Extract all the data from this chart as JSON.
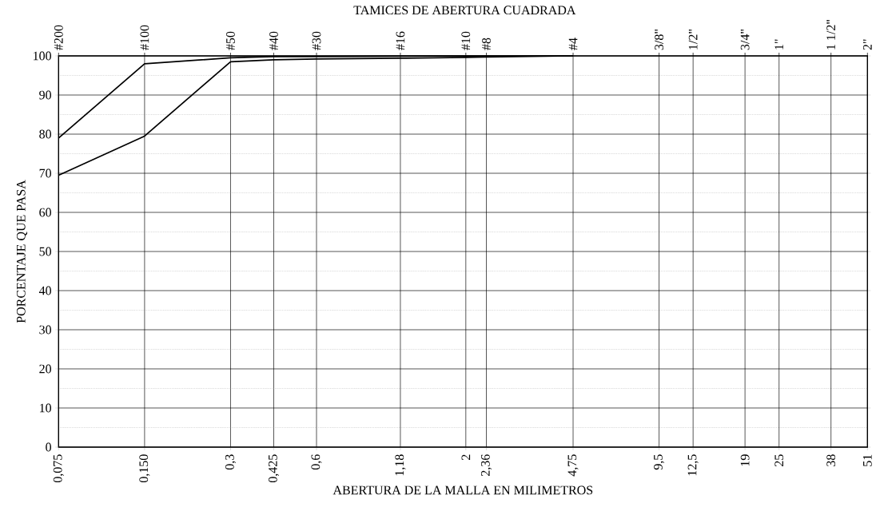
{
  "chart_data": {
    "type": "line",
    "title": "TAMICES DE ABERTURA  CUADRADA",
    "xlabel": "ABERTURA DE LA MALLA EN MILIMETROS",
    "ylabel": "PORCENTAJE QUE PASA",
    "x": [
      0.075,
      0.15,
      0.3,
      0.425,
      0.6,
      1.18,
      2,
      2.36,
      4.75
    ],
    "series": [
      {
        "color": "#000000",
        "values": [
          79,
          98,
          99.5,
          99.8,
          99.8,
          99.9,
          100,
          100,
          100
        ]
      },
      {
        "color": "#000000",
        "values": [
          69.5,
          79.5,
          98.5,
          99,
          99.2,
          99.4,
          99.6,
          99.7,
          100
        ]
      }
    ],
    "log": "x",
    "grid": true,
    "xlim": [
      0.075,
      51
    ],
    "ylim": [
      0,
      100
    ],
    "xticks": [
      {
        "value": 0.075,
        "label": "0,075"
      },
      {
        "value": 0.15,
        "label": "0,150"
      },
      {
        "value": 0.3,
        "label": "0,3"
      },
      {
        "value": 0.425,
        "label": "0,425"
      },
      {
        "value": 0.6,
        "label": "0,6"
      },
      {
        "value": 1.18,
        "label": "1,18"
      },
      2,
      {
        "value": 2.36,
        "label": "2,36"
      },
      {
        "value": 4.75,
        "label": "4,75"
      },
      {
        "value": 9.5,
        "label": "9,5"
      },
      {
        "value": 12.5,
        "label": "12,5"
      },
      19,
      25,
      38,
      51
    ],
    "annotations": [
      "#200",
      "#100",
      "#50",
      "#40",
      "#30",
      "#16",
      "#10",
      "#8",
      "#4",
      "3/8\"",
      "1/2\"",
      "3/4\"",
      "1\"",
      "1 1/2\"",
      "2\""
    ],
    "yticks": [
      0,
      {
        "value": 5,
        "label": null
      },
      10,
      {
        "value": 15,
        "label": null
      },
      20,
      {
        "value": 25,
        "label": null
      },
      30,
      {
        "value": 35,
        "label": null
      },
      40,
      {
        "value": 45,
        "label": null
      },
      50,
      {
        "value": 55,
        "label": null
      },
      60,
      {
        "value": 65,
        "label": null
      },
      70,
      {
        "value": 75,
        "label": null
      },
      80,
      {
        "value": 85,
        "label": null
      },
      90,
      {
        "value": 95,
        "label": null
      },
      100
    ]
  }
}
